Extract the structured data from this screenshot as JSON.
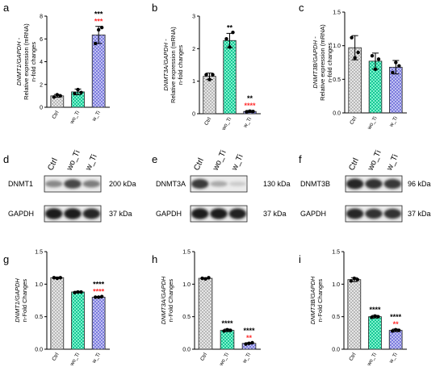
{
  "panels": {
    "a": "a",
    "b": "b",
    "c": "c",
    "d": "d",
    "e": "e",
    "f": "f",
    "g": "g",
    "h": "h",
    "i": "i"
  },
  "colors": {
    "ctrl": "#cfcfcf",
    "wo_ti": "#39e0b0",
    "w_ti": "#9a9ae8",
    "star_black": "#000000",
    "star_red": "#ff2a2a"
  },
  "chart_data": [
    {
      "panel": "a",
      "type": "bar",
      "categories": [
        "Ctrl",
        "wo_Ti",
        "w_Ti"
      ],
      "values": [
        1.0,
        1.35,
        6.35
      ],
      "errors": [
        0.12,
        0.25,
        0.75
      ],
      "points": [
        [
          0.9,
          1.1,
          1.0
        ],
        [
          1.2,
          1.55,
          1.3
        ],
        [
          5.6,
          6.8,
          7.0
        ]
      ],
      "ylabel_gene": "DNMT1/GAPDH -",
      "ylabel_rest": [
        "Relative expression (mRNA)",
        "n-fold changes"
      ],
      "ylim": [
        0,
        8
      ],
      "yticks": [
        0,
        2,
        4,
        6,
        8
      ],
      "stars": [
        null,
        null,
        {
          "black": "***",
          "red": "***"
        }
      ]
    },
    {
      "panel": "b",
      "type": "bar",
      "categories": [
        "Ctrl",
        "wo_Ti",
        "w_Ti"
      ],
      "values": [
        1.15,
        2.25,
        0.07
      ],
      "errors": [
        0.1,
        0.22,
        0.03
      ],
      "points": [
        [
          1.2,
          1.05,
          1.2
        ],
        [
          2.3,
          2.05,
          2.5
        ],
        [
          0.06,
          0.08,
          0.07
        ]
      ],
      "ylabel_gene": "DNMT3A/GAPDH -",
      "ylabel_rest": [
        "Relative expression (mRNA)",
        "n-fold changes"
      ],
      "ylim": [
        0,
        3
      ],
      "yticks": [
        0,
        1,
        2,
        3
      ],
      "stars": [
        null,
        {
          "black": "**",
          "red": null
        },
        {
          "black": "**",
          "red": "****"
        }
      ]
    },
    {
      "panel": "c",
      "type": "bar",
      "categories": [
        "Ctrl",
        "wo_Ti",
        "w_Ti"
      ],
      "values": [
        0.97,
        0.77,
        0.68
      ],
      "errors": [
        0.18,
        0.12,
        0.1
      ],
      "points": [
        [
          1.12,
          0.82,
          0.9
        ],
        [
          0.85,
          0.65,
          0.8
        ],
        [
          0.6,
          0.75,
          0.7
        ]
      ],
      "ylabel_gene": "DNMT3B/GAPDH -",
      "ylabel_rest": [
        "Relative expression (mRNA)",
        "n-fold changes"
      ],
      "ylim": [
        0,
        1.5
      ],
      "yticks": [
        0,
        0.5,
        1.0,
        1.5
      ],
      "ytick_labels": [
        "0.0",
        "0.5",
        "1.0",
        "1.5"
      ],
      "stars": [
        null,
        null,
        null
      ]
    },
    {
      "panel": "g",
      "type": "bar",
      "categories": [
        "Ctrl",
        "wo_Ti",
        "w_Ti"
      ],
      "values": [
        1.1,
        0.88,
        0.8
      ],
      "errors": [
        0.01,
        0.01,
        0.01
      ],
      "points": [
        [
          1.1,
          1.09,
          1.1
        ],
        [
          0.87,
          0.88,
          0.88
        ],
        [
          0.8,
          0.8,
          0.81
        ]
      ],
      "ylabel_gene": "DNMT1/GAPDH",
      "ylabel_rest": [
        "n-Fold Changes"
      ],
      "ylim": [
        0,
        1.5
      ],
      "yticks": [
        0,
        0.5,
        1.0,
        1.5
      ],
      "ytick_labels": [
        "0.0",
        "0.5",
        "1.0",
        "1.5"
      ],
      "stars": [
        null,
        null,
        {
          "black": "****",
          "red": "****"
        }
      ]
    },
    {
      "panel": "h",
      "type": "bar",
      "categories": [
        "Ctrl",
        "wo_Ti",
        "w_Ti"
      ],
      "values": [
        1.09,
        0.29,
        0.09
      ],
      "errors": [
        0.01,
        0.02,
        0.01
      ],
      "points": [
        [
          1.09,
          1.08,
          1.1
        ],
        [
          0.28,
          0.3,
          0.29
        ],
        [
          0.08,
          0.09,
          0.1
        ]
      ],
      "ylabel_gene": "DNMT3A/GAPDH",
      "ylabel_rest": [
        "n-Fold Changes"
      ],
      "ylim": [
        0,
        1.5
      ],
      "yticks": [
        0,
        0.5,
        1.0,
        1.5
      ],
      "ytick_labels": [
        "0.0",
        "0.5",
        "1.0",
        "1.5"
      ],
      "stars": [
        null,
        {
          "black": "****",
          "red": null
        },
        {
          "black": "****",
          "red": "**"
        }
      ]
    },
    {
      "panel": "i",
      "type": "bar",
      "categories": [
        "Ctrl",
        "wo_Ti",
        "w_Ti"
      ],
      "values": [
        1.07,
        0.5,
        0.29
      ],
      "errors": [
        0.03,
        0.02,
        0.02
      ],
      "points": [
        [
          1.05,
          1.09,
          1.07
        ],
        [
          0.49,
          0.51,
          0.5
        ],
        [
          0.28,
          0.3,
          0.29
        ]
      ],
      "ylabel_gene": "DNMT3B/GAPDH",
      "ylabel_rest": [
        "n-Fold Changes"
      ],
      "ylim": [
        0,
        1.5
      ],
      "yticks": [
        0,
        0.5,
        1.0,
        1.5
      ],
      "ytick_labels": [
        "0.0",
        "0.5",
        "1.0",
        "1.5"
      ],
      "stars": [
        null,
        {
          "black": "****",
          "red": null
        },
        {
          "black": "****",
          "red": "**"
        }
      ]
    }
  ],
  "blots": [
    {
      "panel": "d",
      "lanes": [
        "Ctrl",
        "wo_Ti",
        "w_Ti"
      ],
      "rows": [
        {
          "protein": "DNMT1",
          "size": "200 kDa",
          "intensity": [
            0.45,
            0.75,
            0.5
          ]
        },
        {
          "protein": "GAPDH",
          "size": "37 kDa",
          "intensity": [
            0.95,
            0.95,
            0.9
          ]
        }
      ]
    },
    {
      "panel": "e",
      "lanes": [
        "Ctrl",
        "wo_Ti",
        "w_Ti"
      ],
      "rows": [
        {
          "protein": "DNMT3A",
          "size": "130 kDa",
          "intensity": [
            0.8,
            0.3,
            0.15
          ]
        },
        {
          "protein": "GAPDH",
          "size": "37 kDa",
          "intensity": [
            0.95,
            0.95,
            0.92
          ]
        }
      ]
    },
    {
      "panel": "f",
      "lanes": [
        "Ctrl",
        "wo_Ti",
        "w_Ti"
      ],
      "rows": [
        {
          "protein": "DNMT3B",
          "size": "96 kDa",
          "intensity": [
            0.9,
            0.85,
            0.82
          ]
        },
        {
          "protein": "GAPDH",
          "size": "37 kDa",
          "intensity": [
            0.9,
            0.85,
            0.85
          ]
        }
      ]
    }
  ]
}
